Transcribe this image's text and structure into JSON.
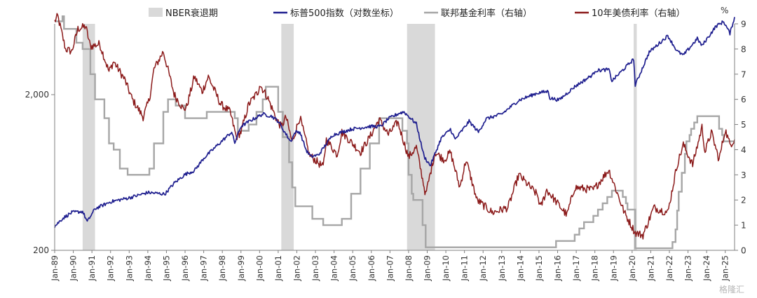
{
  "chart_data": {
    "type": "line",
    "x_tick_labels": [
      "Jan-89",
      "Jan-90",
      "Jan-91",
      "Jan-92",
      "Jan-93",
      "Jan-94",
      "Jan-95",
      "Jan-96",
      "Jan-97",
      "Jan-98",
      "Jan-99",
      "Jan-00",
      "Jan-01",
      "Jan-02",
      "Jan-03",
      "Jan-04",
      "Jan-05",
      "Jan-06",
      "Jan-07",
      "Jan-08",
      "Jan-09",
      "Jan-10",
      "Jan-11",
      "Jan-12",
      "Jan-13",
      "Jan-14",
      "Jan-15",
      "Jan-16",
      "Jan-17",
      "Jan-18",
      "Jan-19",
      "Jan-20",
      "Jan-21",
      "Jan-22",
      "Jan-23",
      "Jan-24",
      "Jan-25"
    ],
    "x_range": [
      "1989-01",
      "2025-07"
    ],
    "y_left": {
      "scale": "log",
      "range": [
        200,
        5700
      ],
      "tick_values": [
        200,
        2000
      ],
      "tick_labels": [
        "200",
        "2,000"
      ]
    },
    "y_right": {
      "range": [
        0,
        9
      ],
      "tick_labels": [
        "0",
        "1",
        "2",
        "3",
        "4",
        "5",
        "6",
        "7",
        "8",
        "9"
      ],
      "unit": "%"
    },
    "grid": false,
    "legend_position": "top",
    "legend": [
      {
        "label": "NBER衰退期",
        "kind": "bar",
        "color": "#d9d9d9"
      },
      {
        "label": "标普500指数（对数坐标）",
        "kind": "line",
        "color": "#1f1f8f"
      },
      {
        "label": "联邦基金利率（右轴）",
        "kind": "line",
        "color": "#a6a6a6"
      },
      {
        "label": "10年美债利率（右轴）",
        "kind": "line",
        "color": "#8b1a1a"
      }
    ],
    "recessions": [
      {
        "start": "1990-07",
        "end": "1991-03"
      },
      {
        "start": "2001-03",
        "end": "2001-11"
      },
      {
        "start": "2007-12",
        "end": "2009-06"
      },
      {
        "start": "2020-02",
        "end": "2020-04"
      }
    ],
    "series": [
      {
        "name": "标普500指数（对数坐标）",
        "axis": "left",
        "color": "#1f1f8f",
        "points": [
          [
            "1989-01",
            285
          ],
          [
            "1989-06",
            320
          ],
          [
            "1989-12",
            350
          ],
          [
            "1990-07",
            355
          ],
          [
            "1990-10",
            305
          ],
          [
            "1991-03",
            370
          ],
          [
            "1992-01",
            410
          ],
          [
            "1993-01",
            435
          ],
          [
            "1994-01",
            470
          ],
          [
            "1994-12",
            460
          ],
          [
            "1995-06",
            540
          ],
          [
            "1996-01",
            615
          ],
          [
            "1996-07",
            650
          ],
          [
            "1997-01",
            780
          ],
          [
            "1997-10",
            950
          ],
          [
            "1998-07",
            1150
          ],
          [
            "1998-09",
            980
          ],
          [
            "1999-01",
            1250
          ],
          [
            "1999-07",
            1360
          ],
          [
            "2000-03",
            1500
          ],
          [
            "2000-09",
            1450
          ],
          [
            "2001-01",
            1350
          ],
          [
            "2001-04",
            1200
          ],
          [
            "2001-09",
            1000
          ],
          [
            "2001-12",
            1150
          ],
          [
            "2002-03",
            1150
          ],
          [
            "2002-07",
            880
          ],
          [
            "2002-10",
            800
          ],
          [
            "2003-03",
            820
          ],
          [
            "2003-12",
            1100
          ],
          [
            "2004-12",
            1200
          ],
          [
            "2005-12",
            1250
          ],
          [
            "2006-07",
            1250
          ],
          [
            "2006-12",
            1400
          ],
          [
            "2007-07",
            1520
          ],
          [
            "2007-10",
            1550
          ],
          [
            "2008-06",
            1300
          ],
          [
            "2008-11",
            800
          ],
          [
            "2009-03",
            700
          ],
          [
            "2009-10",
            1050
          ],
          [
            "2010-04",
            1200
          ],
          [
            "2010-07",
            1030
          ],
          [
            "2011-04",
            1350
          ],
          [
            "2011-10",
            1150
          ],
          [
            "2012-03",
            1400
          ],
          [
            "2013-01",
            1500
          ],
          [
            "2013-12",
            1840
          ],
          [
            "2014-12",
            2050
          ],
          [
            "2015-07",
            2100
          ],
          [
            "2015-08",
            1900
          ],
          [
            "2016-02",
            1850
          ],
          [
            "2016-12",
            2250
          ],
          [
            "2017-12",
            2700
          ],
          [
            "2018-01",
            2850
          ],
          [
            "2018-10",
            2900
          ],
          [
            "2018-12",
            2450
          ],
          [
            "2019-12",
            3230
          ],
          [
            "2020-02",
            3380
          ],
          [
            "2020-03",
            2300
          ],
          [
            "2020-12",
            3750
          ],
          [
            "2021-12",
            4780
          ],
          [
            "2022-06",
            3800
          ],
          [
            "2022-10",
            3580
          ],
          [
            "2023-07",
            4580
          ],
          [
            "2023-10",
            4120
          ],
          [
            "2024-07",
            5500
          ],
          [
            "2024-12",
            5900
          ],
          [
            "2025-04",
            4950
          ],
          [
            "2025-07",
            6300
          ]
        ]
      },
      {
        "name": "联邦基金利率（右轴）",
        "axis": "right",
        "color": "#a6a6a6",
        "points": [
          [
            "1989-01",
            9.1
          ],
          [
            "1989-06",
            9.3
          ],
          [
            "1989-07",
            8.8
          ],
          [
            "1990-03",
            8.25
          ],
          [
            "1990-07",
            8.0
          ],
          [
            "1990-12",
            7.0
          ],
          [
            "1991-03",
            6.0
          ],
          [
            "1991-09",
            5.25
          ],
          [
            "1991-12",
            4.25
          ],
          [
            "1992-03",
            4.0
          ],
          [
            "1992-07",
            3.25
          ],
          [
            "1992-12",
            3.0
          ],
          [
            "1994-02",
            3.25
          ],
          [
            "1994-05",
            4.25
          ],
          [
            "1994-11",
            5.5
          ],
          [
            "1995-02",
            6.0
          ],
          [
            "1995-07",
            5.75
          ],
          [
            "1996-01",
            5.25
          ],
          [
            "1997-03",
            5.5
          ],
          [
            "1998-09",
            5.25
          ],
          [
            "1998-11",
            4.75
          ],
          [
            "1999-06",
            5.0
          ],
          [
            "1999-11",
            5.5
          ],
          [
            "2000-03",
            6.0
          ],
          [
            "2000-05",
            6.5
          ],
          [
            "2000-12",
            6.5
          ],
          [
            "2001-01",
            5.5
          ],
          [
            "2001-04",
            4.5
          ],
          [
            "2001-08",
            3.5
          ],
          [
            "2001-10",
            2.5
          ],
          [
            "2001-12",
            1.75
          ],
          [
            "2002-11",
            1.25
          ],
          [
            "2003-06",
            1.0
          ],
          [
            "2004-06",
            1.25
          ],
          [
            "2004-12",
            2.25
          ],
          [
            "2005-06",
            3.25
          ],
          [
            "2005-12",
            4.25
          ],
          [
            "2006-06",
            5.25
          ],
          [
            "2007-08",
            5.25
          ],
          [
            "2007-09",
            4.75
          ],
          [
            "2007-12",
            4.25
          ],
          [
            "2008-01",
            3.0
          ],
          [
            "2008-03",
            2.25
          ],
          [
            "2008-04",
            2.0
          ],
          [
            "2008-10",
            1.0
          ],
          [
            "2008-12",
            0.12
          ],
          [
            "2015-12",
            0.37
          ],
          [
            "2016-12",
            0.62
          ],
          [
            "2017-03",
            0.87
          ],
          [
            "2017-06",
            1.12
          ],
          [
            "2017-12",
            1.37
          ],
          [
            "2018-03",
            1.62
          ],
          [
            "2018-06",
            1.87
          ],
          [
            "2018-09",
            2.12
          ],
          [
            "2018-12",
            2.37
          ],
          [
            "2019-07",
            2.12
          ],
          [
            "2019-09",
            1.87
          ],
          [
            "2019-10",
            1.62
          ],
          [
            "2020-03",
            0.08
          ],
          [
            "2022-03",
            0.33
          ],
          [
            "2022-05",
            0.83
          ],
          [
            "2022-06",
            1.58
          ],
          [
            "2022-07",
            2.33
          ],
          [
            "2022-09",
            3.08
          ],
          [
            "2022-11",
            3.83
          ],
          [
            "2022-12",
            4.33
          ],
          [
            "2023-02",
            4.58
          ],
          [
            "2023-03",
            4.83
          ],
          [
            "2023-05",
            5.08
          ],
          [
            "2023-07",
            5.33
          ],
          [
            "2024-09",
            4.83
          ],
          [
            "2024-11",
            4.58
          ],
          [
            "2024-12",
            4.33
          ],
          [
            "2025-07",
            4.33
          ]
        ]
      },
      {
        "name": "10年美债利率（右轴）",
        "axis": "right",
        "color": "#8b1a1a",
        "points": [
          [
            "1989-01",
            9.1
          ],
          [
            "1989-03",
            9.3
          ],
          [
            "1989-08",
            8.0
          ],
          [
            "1989-12",
            7.9
          ],
          [
            "1990-04",
            8.8
          ],
          [
            "1990-09",
            8.9
          ],
          [
            "1990-12",
            8.1
          ],
          [
            "1991-06",
            8.2
          ],
          [
            "1991-12",
            7.1
          ],
          [
            "1992-03",
            7.5
          ],
          [
            "1992-10",
            6.8
          ],
          [
            "1993-03",
            6.0
          ],
          [
            "1993-10",
            5.3
          ],
          [
            "1994-02",
            6.0
          ],
          [
            "1994-05",
            7.2
          ],
          [
            "1994-11",
            7.9
          ],
          [
            "1995-06",
            6.2
          ],
          [
            "1995-12",
            5.6
          ],
          [
            "1996-02",
            5.7
          ],
          [
            "1996-07",
            6.9
          ],
          [
            "1996-12",
            6.3
          ],
          [
            "1997-04",
            6.9
          ],
          [
            "1997-12",
            5.8
          ],
          [
            "1998-06",
            5.5
          ],
          [
            "1998-10",
            4.5
          ],
          [
            "1999-01",
            4.7
          ],
          [
            "1999-06",
            5.8
          ],
          [
            "1999-12",
            6.3
          ],
          [
            "2000-01",
            6.6
          ],
          [
            "2000-06",
            6.1
          ],
          [
            "2000-12",
            5.2
          ],
          [
            "2001-03",
            4.9
          ],
          [
            "2001-06",
            5.3
          ],
          [
            "2001-10",
            4.3
          ],
          [
            "2002-03",
            5.3
          ],
          [
            "2002-09",
            3.8
          ],
          [
            "2003-06",
            3.3
          ],
          [
            "2003-08",
            4.4
          ],
          [
            "2004-03",
            3.8
          ],
          [
            "2004-06",
            4.7
          ],
          [
            "2005-06",
            3.9
          ],
          [
            "2005-12",
            4.5
          ],
          [
            "2006-06",
            5.2
          ],
          [
            "2006-12",
            4.6
          ],
          [
            "2007-06",
            5.1
          ],
          [
            "2008-01",
            3.7
          ],
          [
            "2008-06",
            4.1
          ],
          [
            "2008-12",
            2.2
          ],
          [
            "2009-06",
            3.9
          ],
          [
            "2009-12",
            3.6
          ],
          [
            "2010-04",
            3.9
          ],
          [
            "2010-10",
            2.5
          ],
          [
            "2011-02",
            3.6
          ],
          [
            "2011-09",
            2.0
          ],
          [
            "2012-07",
            1.5
          ],
          [
            "2013-05",
            1.7
          ],
          [
            "2013-12",
            3.0
          ],
          [
            "2014-12",
            2.2
          ],
          [
            "2015-02",
            1.7
          ],
          [
            "2015-06",
            2.4
          ],
          [
            "2016-07",
            1.4
          ],
          [
            "2016-12",
            2.5
          ],
          [
            "2017-12",
            2.4
          ],
          [
            "2018-10",
            3.2
          ],
          [
            "2019-08",
            1.5
          ],
          [
            "2020-03",
            0.7
          ],
          [
            "2020-08",
            0.6
          ],
          [
            "2021-03",
            1.7
          ],
          [
            "2021-12",
            1.5
          ],
          [
            "2022-06",
            3.4
          ],
          [
            "2022-10",
            4.2
          ],
          [
            "2023-04",
            3.4
          ],
          [
            "2023-10",
            4.9
          ],
          [
            "2023-12",
            3.9
          ],
          [
            "2024-04",
            4.7
          ],
          [
            "2024-09",
            3.6
          ],
          [
            "2025-01",
            4.8
          ],
          [
            "2025-04",
            4.2
          ],
          [
            "2025-07",
            4.4
          ]
        ]
      }
    ]
  },
  "watermark": "格隆汇"
}
